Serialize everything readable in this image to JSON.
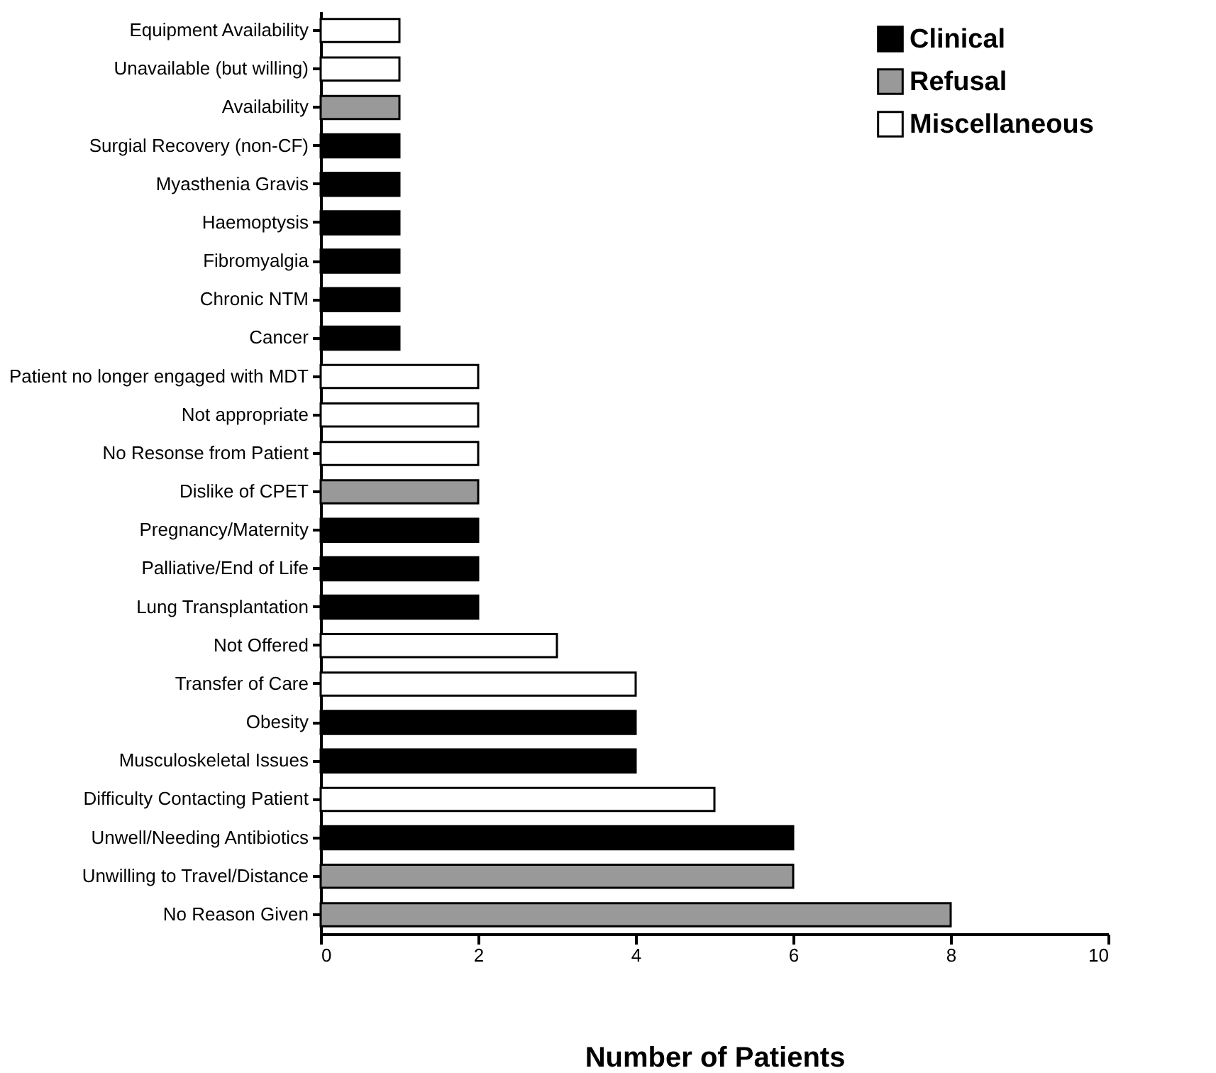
{
  "chart_data": {
    "type": "bar",
    "orientation": "horizontal",
    "xlabel": "Number of Patients",
    "categories": [
      "Equipment Availability",
      "Unavailable (but willing)",
      "Availability",
      "Surgial Recovery (non-CF)",
      "Myasthenia Gravis",
      "Haemoptysis",
      "Fibromyalgia",
      "Chronic NTM",
      "Cancer",
      "Patient no longer engaged with MDT",
      "Not appropriate",
      "No Resonse from Patient",
      "Dislike of CPET",
      "Pregnancy/Maternity",
      "Palliative/End of Life",
      "Lung Transplantation",
      "Not Offered",
      "Transfer of Care",
      "Obesity",
      "Musculoskeletal Issues",
      "Difficulty Contacting Patient",
      "Unwell/Needing Antibiotics",
      "Unwilling to Travel/Distance",
      "No Reason Given"
    ],
    "series": [
      {
        "name": "Clinical",
        "color": "#000000",
        "values": [
          null,
          null,
          null,
          1,
          1,
          1,
          1,
          1,
          1,
          null,
          null,
          null,
          null,
          2,
          2,
          2,
          null,
          null,
          4,
          4,
          null,
          6,
          null,
          null
        ]
      },
      {
        "name": "Refusal",
        "color": "#999999",
        "values": [
          null,
          null,
          1,
          null,
          null,
          null,
          null,
          null,
          null,
          null,
          null,
          null,
          2,
          null,
          null,
          null,
          null,
          null,
          null,
          null,
          null,
          null,
          6,
          8
        ]
      },
      {
        "name": "Miscellaneous",
        "color": "#ffffff",
        "values": [
          1,
          1,
          null,
          null,
          null,
          null,
          null,
          null,
          null,
          2,
          2,
          2,
          null,
          null,
          null,
          null,
          3,
          4,
          null,
          null,
          5,
          null,
          null,
          null
        ]
      }
    ],
    "xlim": [
      0,
      10
    ],
    "xticks": [
      0,
      2,
      4,
      6,
      8,
      10
    ],
    "legend": "top right"
  }
}
